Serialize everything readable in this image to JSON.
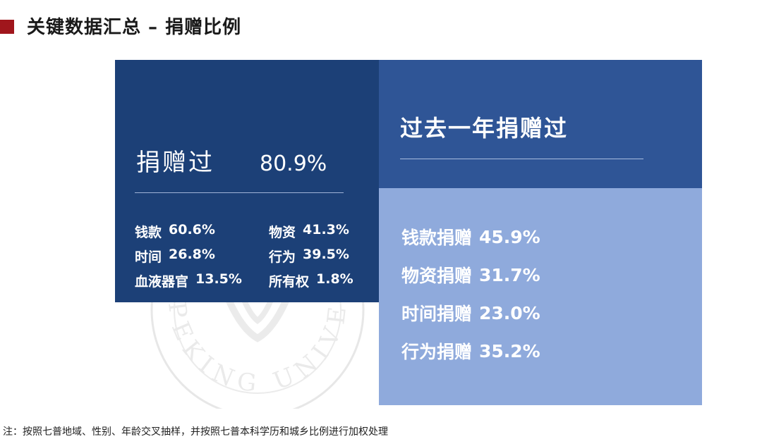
{
  "title": "关键数据汇总 – 捐赠比例",
  "left_panel": {
    "donated_label": "捐赠过",
    "donated_value": "80.9%",
    "stats": [
      [
        {
          "name": "钱款",
          "value": "60.6%"
        },
        {
          "name": "物资",
          "value": "41.3%"
        }
      ],
      [
        {
          "name": "时间",
          "value": "26.8%"
        },
        {
          "name": "行为",
          "value": "39.5%"
        }
      ],
      [
        {
          "name": "血液器官",
          "value": "13.5%"
        },
        {
          "name": "所有权",
          "value": "1.8%"
        }
      ]
    ]
  },
  "right_panel": {
    "title": "过去一年捐赠过",
    "items": [
      {
        "name": "钱款捐赠",
        "value": "45.9%"
      },
      {
        "name": "物资捐赠",
        "value": "31.7%"
      },
      {
        "name": "时间捐赠",
        "value": "23.0%"
      },
      {
        "name": "行为捐赠",
        "value": "35.2%"
      }
    ]
  },
  "watermark_text": "PEKING UNIVE",
  "footnote": "注：按照七普地域、性别、年龄交叉抽样，并按照七普本科学历和城乡比例进行加权处理",
  "colors": {
    "accent": "#a0161c",
    "left_panel": "#1c4077",
    "right_top": "#2f5596",
    "right_bottom": "#8faadc"
  }
}
